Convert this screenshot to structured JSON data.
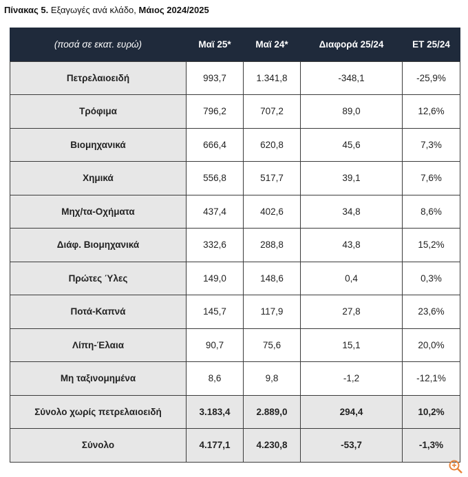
{
  "title": {
    "label": "Πίνακας 5.",
    "text": "Εξαγωγές ανά κλάδο,",
    "period": "Μάιος 2024/2025"
  },
  "table": {
    "header": [
      "(ποσά σε εκατ. ευρώ)",
      "Μαϊ 25*",
      "Μαϊ 24*",
      "Διαφορά 25/24",
      "ΕΤ 25/24"
    ],
    "rows": [
      [
        "Πετρελαιοειδή",
        "993,7",
        "1.341,8",
        "-348,1",
        "-25,9%"
      ],
      [
        "Τρόφιμα",
        "796,2",
        "707,2",
        "89,0",
        "12,6%"
      ],
      [
        "Βιομηχανικά",
        "666,4",
        "620,8",
        "45,6",
        "7,3%"
      ],
      [
        "Χημικά",
        "556,8",
        "517,7",
        "39,1",
        "7,6%"
      ],
      [
        "Μηχ/τα-Οχήματα",
        "437,4",
        "402,6",
        "34,8",
        "8,6%"
      ],
      [
        "Διάφ. Βιομηχανικά",
        "332,6",
        "288,8",
        "43,8",
        "15,2%"
      ],
      [
        "Πρώτες Ύλες",
        "149,0",
        "148,6",
        "0,4",
        "0,3%"
      ],
      [
        "Ποτά-Καπνά",
        "145,7",
        "117,9",
        "27,8",
        "23,6%"
      ],
      [
        "Λίπη-Έλαια",
        "90,7",
        "75,6",
        "15,1",
        "20,0%"
      ],
      [
        "Μη ταξινομημένα",
        "8,6",
        "9,8",
        "-1,2",
        "-12,1%"
      ]
    ],
    "total_rows": [
      [
        "Σύνολο χωρίς πετρελαιοειδή",
        "3.183,4",
        "2.889,0",
        "294,4",
        "10,2%"
      ],
      [
        "Σύνολο",
        "4.177,1",
        "4.230,8",
        "-53,7",
        "-1,3%"
      ]
    ]
  }
}
